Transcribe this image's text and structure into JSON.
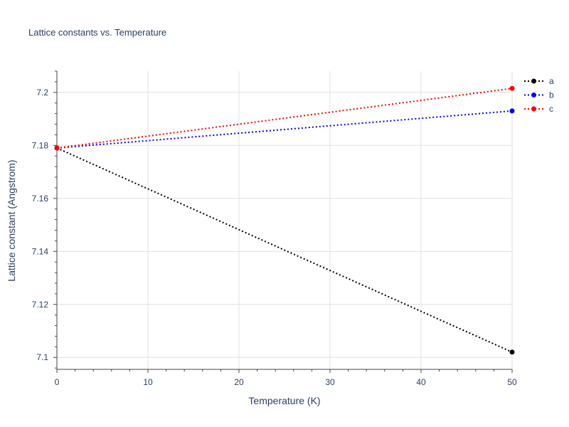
{
  "chart_data": {
    "type": "line",
    "title": "Lattice constants vs. Temperature",
    "xlabel": "Temperature (K)",
    "ylabel": "Lattice constant (Angstrom)",
    "xlim": [
      0,
      50
    ],
    "ylim": [
      7.0955,
      7.208
    ],
    "x_ticks": [
      0,
      10,
      20,
      30,
      40,
      50
    ],
    "y_ticks": [
      7.1,
      7.12,
      7.14,
      7.16,
      7.18,
      7.2
    ],
    "x": [
      0,
      50
    ],
    "series": [
      {
        "name": "a",
        "color": "#000000",
        "values": [
          7.179,
          7.102
        ]
      },
      {
        "name": "b",
        "color": "#0000ff",
        "values": [
          7.179,
          7.193
        ]
      },
      {
        "name": "c",
        "color": "#ff0000",
        "values": [
          7.179,
          7.2015
        ]
      }
    ],
    "grid": true,
    "line_style": "dotted",
    "legend_position": "top-right"
  }
}
